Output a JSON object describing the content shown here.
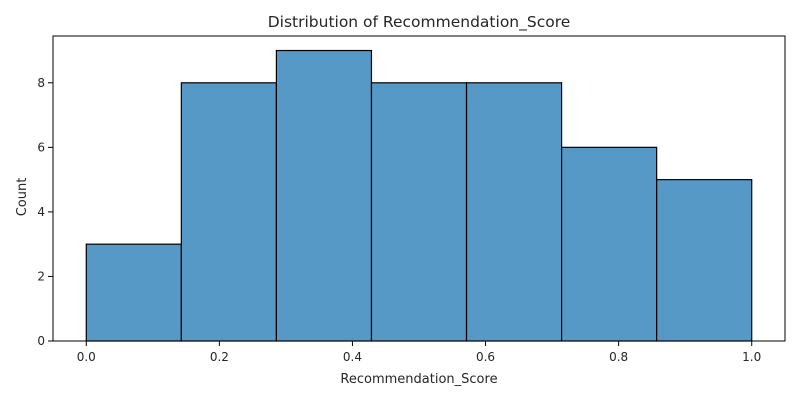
{
  "chart_data": {
    "type": "bar",
    "title": "Distribution of Recommendation_Score",
    "xlabel": "Recommendation_Score",
    "ylabel": "Count",
    "bin_edges": [
      0.0,
      0.142857,
      0.285714,
      0.428571,
      0.571429,
      0.714286,
      0.857143,
      1.0
    ],
    "values": [
      3,
      8,
      9,
      8,
      8,
      6,
      5
    ],
    "xlim": [
      -0.05,
      1.05
    ],
    "ylim": [
      0,
      9.45
    ],
    "xticks": [
      0.0,
      0.2,
      0.4,
      0.6,
      0.8,
      1.0
    ],
    "xtick_labels": [
      "0.0",
      "0.2",
      "0.4",
      "0.6",
      "0.8",
      "1.0"
    ],
    "yticks": [
      0,
      2,
      4,
      6,
      8
    ],
    "ytick_labels": [
      "0",
      "2",
      "4",
      "6",
      "8"
    ],
    "grid": false,
    "colors": {
      "bar_fill": "#5799c6",
      "bar_edge": "#000000",
      "axis": "#000000"
    }
  }
}
